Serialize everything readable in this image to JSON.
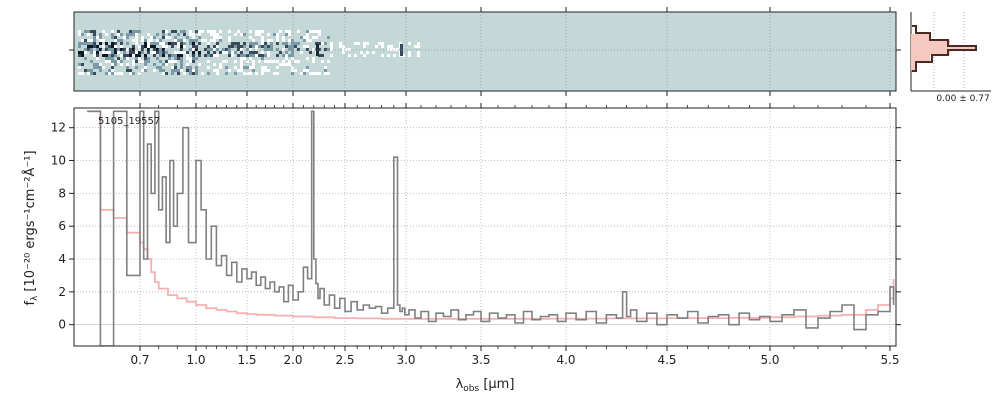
{
  "chart_data": {
    "type": "line",
    "object_id": "5105_19557",
    "xlabel_prefix": "λ",
    "xlabel_sub": "obs",
    "xlabel_unit": " [μm]",
    "ylabel": "f",
    "ylabel_sub": "λ",
    "ylabel_unit": "[10⁻²⁰ ergs⁻¹cm⁻²Å⁻¹]",
    "xlim": [
      0.6,
      5.55
    ],
    "ylim": [
      -1.3,
      13.2
    ],
    "x_ticks": [
      {
        "v": 0.7,
        "label": "0.7"
      },
      {
        "v": 1.0,
        "label": "1.0"
      },
      {
        "v": 1.5,
        "label": "1.5"
      },
      {
        "v": 2.0,
        "label": "2.0"
      },
      {
        "v": 2.5,
        "label": "2.5"
      },
      {
        "v": 3.0,
        "label": "3.0"
      },
      {
        "v": 3.5,
        "label": "3.5"
      },
      {
        "v": 4.0,
        "label": "4.0"
      },
      {
        "v": 4.5,
        "label": "4.5"
      },
      {
        "v": 5.0,
        "label": "5.0"
      },
      {
        "v": 5.5,
        "label": "5.5"
      }
    ],
    "y_ticks": [
      {
        "v": 0,
        "label": "0"
      },
      {
        "v": 2,
        "label": "2"
      },
      {
        "v": 4,
        "label": "4"
      },
      {
        "v": 6,
        "label": "6"
      },
      {
        "v": 8,
        "label": "8"
      },
      {
        "v": 10,
        "label": "10"
      },
      {
        "v": 12,
        "label": "12"
      }
    ],
    "grid": true,
    "series": [
      {
        "color": "#808080",
        "style": "steps",
        "x": [
          0.62,
          0.64,
          0.66,
          0.68,
          0.7,
          0.72,
          0.74,
          0.76,
          0.78,
          0.8,
          0.82,
          0.84,
          0.86,
          0.88,
          0.9,
          0.93,
          0.96,
          1.0,
          1.05,
          1.1,
          1.15,
          1.2,
          1.25,
          1.3,
          1.35,
          1.4,
          1.45,
          1.5,
          1.55,
          1.6,
          1.65,
          1.7,
          1.75,
          1.8,
          1.85,
          1.9,
          1.95,
          2.0,
          2.05,
          2.1,
          2.14,
          2.18,
          2.2,
          2.22,
          2.24,
          2.26,
          2.3,
          2.35,
          2.4,
          2.45,
          2.5,
          2.55,
          2.6,
          2.65,
          2.7,
          2.75,
          2.8,
          2.85,
          2.9,
          2.93,
          2.95,
          2.97,
          2.99,
          3.02,
          3.06,
          3.1,
          3.15,
          3.2,
          3.25,
          3.3,
          3.35,
          3.4,
          3.45,
          3.5,
          3.55,
          3.6,
          3.65,
          3.7,
          3.75,
          3.8,
          3.85,
          3.9,
          3.95,
          4.0,
          4.05,
          4.1,
          4.15,
          4.2,
          4.25,
          4.28,
          4.3,
          4.32,
          4.35,
          4.4,
          4.45,
          4.5,
          4.55,
          4.6,
          4.65,
          4.7,
          4.75,
          4.8,
          4.85,
          4.9,
          4.95,
          5.0,
          5.05,
          5.1,
          5.15,
          5.2,
          5.25,
          5.3,
          5.35,
          5.4,
          5.45,
          5.5,
          5.53
        ],
        "y": [
          13,
          -1.3,
          13,
          3,
          13,
          4,
          11,
          8,
          13,
          7,
          9,
          5,
          10,
          6,
          8,
          12,
          5,
          10,
          7,
          4,
          6,
          3.6,
          4.2,
          3,
          3.8,
          2.6,
          3.4,
          2.8,
          3.2,
          2.4,
          2.9,
          2.2,
          2.6,
          2.0,
          2.3,
          1.4,
          2.4,
          1.5,
          2.0,
          3.5,
          2.8,
          13,
          4,
          2.5,
          1.6,
          2.2,
          1.2,
          1.8,
          1.0,
          1.6,
          0.8,
          1.4,
          0.9,
          1.2,
          1.0,
          1.1,
          0.7,
          1.0,
          10.2,
          1.2,
          0.8,
          1.0,
          0.6,
          0.9,
          0.4,
          0.8,
          0.2,
          0.7,
          0.5,
          0.9,
          0.3,
          0.6,
          0.8,
          0.2,
          0.7,
          0.4,
          0.6,
          0.1,
          0.8,
          0.3,
          0.5,
          0.6,
          0.2,
          0.7,
          0.3,
          0.8,
          0.1,
          0.6,
          0.4,
          2.0,
          0.5,
          0.9,
          0.2,
          0.7,
          0.0,
          0.6,
          0.4,
          0.8,
          0.1,
          0.5,
          0.6,
          0.0,
          0.7,
          0.3,
          0.5,
          0.2,
          0.6,
          0.9,
          -0.2,
          0.4,
          0.8,
          1.2,
          -0.3,
          0.6,
          0.8,
          2.3,
          1.2
        ]
      },
      {
        "color": "#f4a7a7",
        "style": "steps",
        "x": [
          0.62,
          0.64,
          0.66,
          0.68,
          0.7,
          0.72,
          0.74,
          0.76,
          0.78,
          0.8,
          0.85,
          0.9,
          0.95,
          1.0,
          1.1,
          1.2,
          1.3,
          1.4,
          1.5,
          1.6,
          1.8,
          2.0,
          2.2,
          2.4,
          2.6,
          2.8,
          3.0,
          3.3,
          3.6,
          3.9,
          4.2,
          4.5,
          4.8,
          5.0,
          5.1,
          5.2,
          5.3,
          5.4,
          5.45,
          5.5,
          5.53
        ],
        "y": [
          13,
          7,
          6.5,
          5.6,
          5,
          4.6,
          4,
          3.2,
          2.6,
          2.2,
          1.8,
          1.6,
          1.4,
          1.2,
          1.0,
          0.9,
          0.8,
          0.7,
          0.65,
          0.6,
          0.55,
          0.5,
          0.45,
          0.4,
          0.38,
          0.36,
          0.35,
          0.35,
          0.36,
          0.37,
          0.38,
          0.4,
          0.42,
          0.45,
          0.5,
          0.55,
          0.6,
          0.9,
          1.2,
          1.6,
          2.8
        ]
      }
    ],
    "profile_panel": {
      "label": "0.00 ± 0.77"
    }
  }
}
